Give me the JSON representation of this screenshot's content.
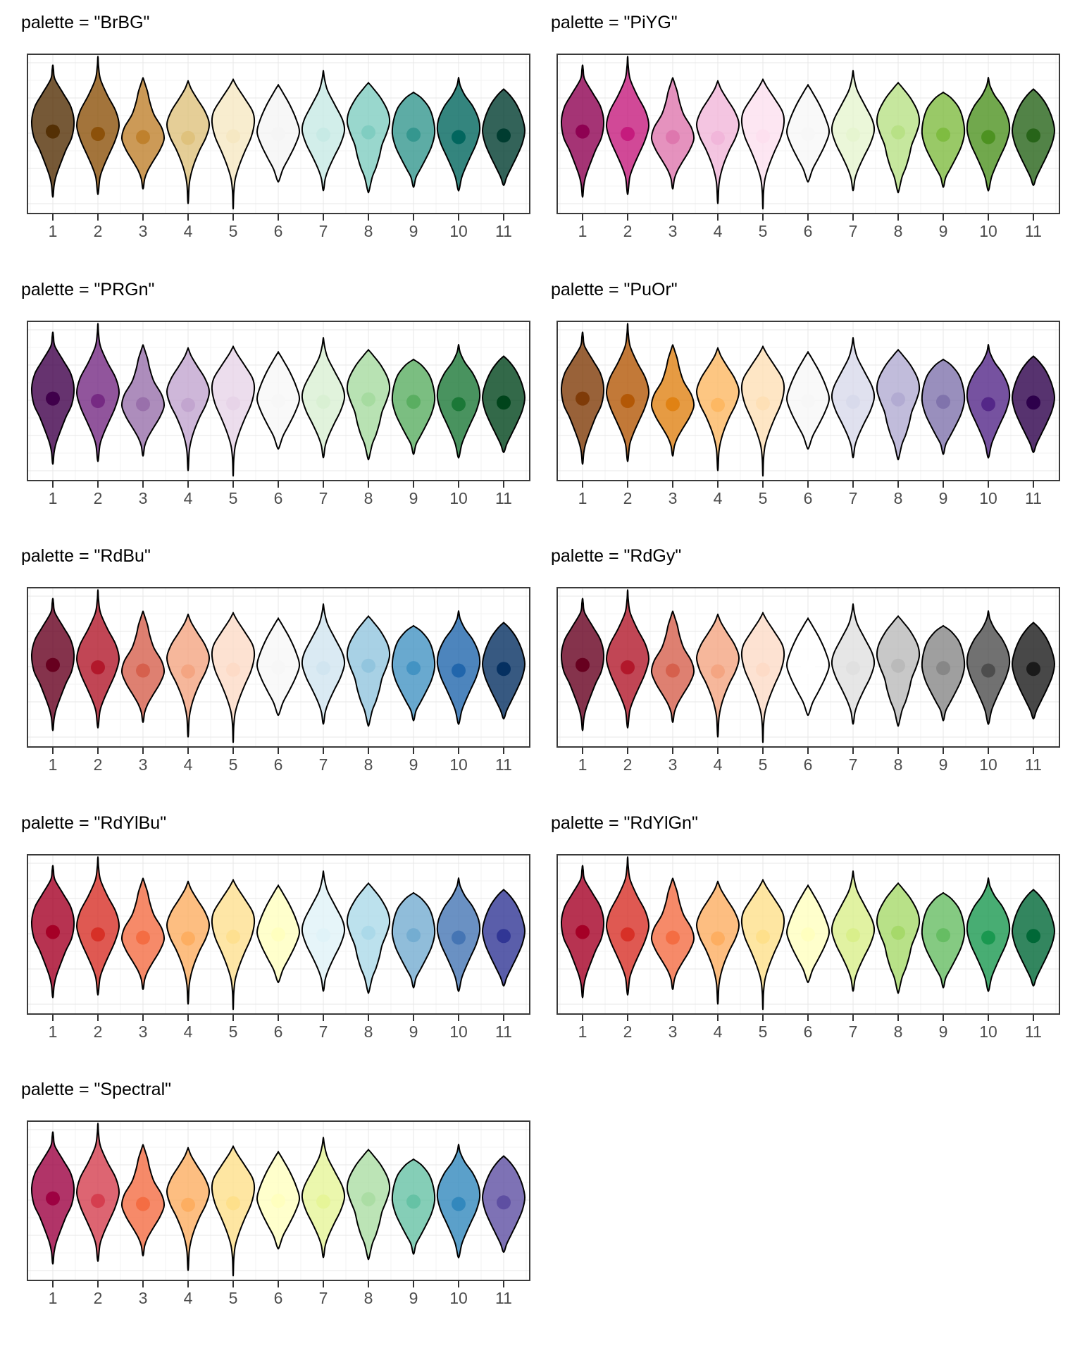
{
  "figure": {
    "background": "#ffffff"
  },
  "style": {
    "outline_color": "#000000",
    "violin_fill_opacity": 0.8,
    "panel_border_color": "#3a3a3a",
    "panel_background": "#ffffff",
    "grid_major_color": "#e7e7e7",
    "grid_minor_color": "#f3f3f3",
    "tick_mark_color": "#333333",
    "tick_label_color": "#4d4d4d",
    "title_color": "#000000"
  },
  "panels": [
    {
      "title": "palette = \"BrBG\"",
      "palette": "BrBG",
      "col": 0,
      "row": 0
    },
    {
      "title": "palette = \"PiYG\"",
      "palette": "PiYG",
      "col": 1,
      "row": 0
    },
    {
      "title": "palette = \"PRGn\"",
      "palette": "PRGn",
      "col": 0,
      "row": 1
    },
    {
      "title": "palette = \"PuOr\"",
      "palette": "PuOr",
      "col": 1,
      "row": 1
    },
    {
      "title": "palette = \"RdBu\"",
      "palette": "RdBu",
      "col": 0,
      "row": 2
    },
    {
      "title": "palette = \"RdGy\"",
      "palette": "RdGy",
      "col": 1,
      "row": 2
    },
    {
      "title": "palette = \"RdYlBu\"",
      "palette": "RdYlBu",
      "col": 0,
      "row": 3
    },
    {
      "title": "palette = \"RdYlGn\"",
      "palette": "RdYlGn",
      "col": 1,
      "row": 3
    },
    {
      "title": "palette = \"Spectral\"",
      "palette": "Spectral",
      "col": 0,
      "row": 4
    }
  ],
  "chart_data": {
    "type": "violin",
    "facet_variable": "palette",
    "facets": [
      "BrBG",
      "PiYG",
      "PRGn",
      "PuOr",
      "RdBu",
      "RdGy",
      "RdYlBu",
      "RdYlGn",
      "Spectral"
    ],
    "x_categories": [
      1,
      2,
      3,
      4,
      5,
      6,
      7,
      8,
      9,
      10,
      11
    ],
    "x_tick_labels": [
      "1",
      "2",
      "3",
      "4",
      "5",
      "6",
      "7",
      "8",
      "9",
      "10",
      "11"
    ],
    "grid": true,
    "legend": false,
    "y_axis_labels": false,
    "palettes": {
      "BrBG": [
        "#543005",
        "#8C510A",
        "#BF812D",
        "#DFC27D",
        "#F6E8C3",
        "#F5F5F5",
        "#C7EAE5",
        "#80CDC1",
        "#35978F",
        "#01665E",
        "#003C30"
      ],
      "PiYG": [
        "#8E0152",
        "#C51B7D",
        "#DE77AE",
        "#F1B6DA",
        "#FDE0EF",
        "#F7F7F7",
        "#E6F5D0",
        "#B8E186",
        "#7FBC41",
        "#4D9221",
        "#276419"
      ],
      "PRGn": [
        "#40004B",
        "#762A83",
        "#9970AB",
        "#C2A5CF",
        "#E7D4E8",
        "#F7F7F7",
        "#D9F0D3",
        "#A6DBA0",
        "#5AAE61",
        "#1B7837",
        "#00441B"
      ],
      "PuOr": [
        "#7F3B08",
        "#B35806",
        "#E08214",
        "#FDB863",
        "#FEE0B6",
        "#F7F7F7",
        "#D8DAEB",
        "#B2ABD2",
        "#8073AC",
        "#542788",
        "#2D004B"
      ],
      "RdBu": [
        "#67001F",
        "#B2182B",
        "#D6604D",
        "#F4A582",
        "#FDDBC7",
        "#F7F7F7",
        "#D1E5F0",
        "#92C5DE",
        "#4393C3",
        "#2166AC",
        "#053061"
      ],
      "RdGy": [
        "#67001F",
        "#B2182B",
        "#D6604D",
        "#F4A582",
        "#FDDBC7",
        "#FFFFFF",
        "#E0E0E0",
        "#BABABA",
        "#878787",
        "#4D4D4D",
        "#1A1A1A"
      ],
      "RdYlBu": [
        "#A50026",
        "#D73027",
        "#F46D43",
        "#FDAE61",
        "#FEE090",
        "#FFFFBF",
        "#E0F3F8",
        "#ABD9E9",
        "#74ADD1",
        "#4575B4",
        "#313695"
      ],
      "RdYlGn": [
        "#A50026",
        "#D73027",
        "#F46D43",
        "#FDAE61",
        "#FEE08B",
        "#FFFFBF",
        "#D9EF8B",
        "#A6D96A",
        "#66BD63",
        "#1A9850",
        "#006837"
      ],
      "Spectral": [
        "#9E0142",
        "#D53E4F",
        "#F46D43",
        "#FDAE61",
        "#FEE08B",
        "#FFFFBF",
        "#E6F598",
        "#ABDDA4",
        "#66C2A5",
        "#3288BD",
        "#5E4FA2"
      ]
    },
    "violins": [
      {
        "x": 1,
        "median": 0.485,
        "profile": [
          [
            0.075,
            0.01
          ],
          [
            0.1,
            0.03
          ],
          [
            0.16,
            0.1
          ],
          [
            0.25,
            0.5
          ],
          [
            0.33,
            0.85
          ],
          [
            0.42,
            1.0
          ],
          [
            0.52,
            0.9
          ],
          [
            0.6,
            0.62
          ],
          [
            0.68,
            0.38
          ],
          [
            0.76,
            0.16
          ],
          [
            0.82,
            0.06
          ],
          [
            0.885,
            0.015
          ]
        ]
      },
      {
        "x": 2,
        "median": 0.5,
        "profile": [
          [
            0.025,
            0.008
          ],
          [
            0.08,
            0.03
          ],
          [
            0.16,
            0.12
          ],
          [
            0.26,
            0.45
          ],
          [
            0.36,
            0.85
          ],
          [
            0.45,
            1.0
          ],
          [
            0.54,
            0.82
          ],
          [
            0.62,
            0.55
          ],
          [
            0.7,
            0.28
          ],
          [
            0.77,
            0.1
          ],
          [
            0.865,
            0.02
          ]
        ]
      },
      {
        "x": 3,
        "median": 0.52,
        "profile": [
          [
            0.155,
            0.012
          ],
          [
            0.19,
            0.1
          ],
          [
            0.24,
            0.22
          ],
          [
            0.3,
            0.32
          ],
          [
            0.38,
            0.52
          ],
          [
            0.46,
            0.88
          ],
          [
            0.53,
            1.0
          ],
          [
            0.6,
            0.8
          ],
          [
            0.67,
            0.48
          ],
          [
            0.73,
            0.22
          ],
          [
            0.78,
            0.08
          ],
          [
            0.835,
            0.02
          ]
        ]
      },
      {
        "x": 4,
        "median": 0.525,
        "profile": [
          [
            0.175,
            0.012
          ],
          [
            0.22,
            0.15
          ],
          [
            0.28,
            0.42
          ],
          [
            0.36,
            0.8
          ],
          [
            0.44,
            1.0
          ],
          [
            0.52,
            0.85
          ],
          [
            0.6,
            0.55
          ],
          [
            0.68,
            0.3
          ],
          [
            0.75,
            0.14
          ],
          [
            0.82,
            0.05
          ],
          [
            0.92,
            0.012
          ]
        ]
      },
      {
        "x": 5,
        "median": 0.515,
        "profile": [
          [
            0.165,
            0.01
          ],
          [
            0.21,
            0.2
          ],
          [
            0.28,
            0.55
          ],
          [
            0.36,
            0.92
          ],
          [
            0.43,
            1.0
          ],
          [
            0.52,
            0.85
          ],
          [
            0.61,
            0.55
          ],
          [
            0.7,
            0.28
          ],
          [
            0.78,
            0.1
          ],
          [
            0.86,
            0.03
          ],
          [
            0.955,
            0.008
          ]
        ]
      },
      {
        "x": 6,
        "median": 0.5,
        "profile": [
          [
            0.2,
            0.02
          ],
          [
            0.25,
            0.25
          ],
          [
            0.32,
            0.55
          ],
          [
            0.41,
            0.85
          ],
          [
            0.49,
            1.0
          ],
          [
            0.57,
            0.8
          ],
          [
            0.65,
            0.5
          ],
          [
            0.72,
            0.22
          ],
          [
            0.79,
            0.04
          ]
        ]
      },
      {
        "x": 7,
        "median": 0.505,
        "profile": [
          [
            0.112,
            0.008
          ],
          [
            0.16,
            0.06
          ],
          [
            0.23,
            0.2
          ],
          [
            0.32,
            0.55
          ],
          [
            0.41,
            0.9
          ],
          [
            0.48,
            1.0
          ],
          [
            0.56,
            0.82
          ],
          [
            0.64,
            0.52
          ],
          [
            0.72,
            0.24
          ],
          [
            0.78,
            0.09
          ],
          [
            0.845,
            0.02
          ]
        ]
      },
      {
        "x": 8,
        "median": 0.49,
        "profile": [
          [
            0.185,
            0.02
          ],
          [
            0.22,
            0.25
          ],
          [
            0.28,
            0.6
          ],
          [
            0.36,
            0.92
          ],
          [
            0.43,
            1.0
          ],
          [
            0.5,
            0.85
          ],
          [
            0.57,
            0.64
          ],
          [
            0.64,
            0.52
          ],
          [
            0.71,
            0.36
          ],
          [
            0.77,
            0.18
          ],
          [
            0.855,
            0.03
          ]
        ]
      },
      {
        "x": 9,
        "median": 0.505,
        "profile": [
          [
            0.245,
            0.04
          ],
          [
            0.28,
            0.4
          ],
          [
            0.34,
            0.75
          ],
          [
            0.42,
            0.95
          ],
          [
            0.5,
            1.0
          ],
          [
            0.58,
            0.85
          ],
          [
            0.65,
            0.6
          ],
          [
            0.72,
            0.32
          ],
          [
            0.77,
            0.12
          ],
          [
            0.825,
            0.025
          ]
        ]
      },
      {
        "x": 10,
        "median": 0.52,
        "profile": [
          [
            0.155,
            0.01
          ],
          [
            0.2,
            0.08
          ],
          [
            0.26,
            0.3
          ],
          [
            0.33,
            0.68
          ],
          [
            0.41,
            0.95
          ],
          [
            0.48,
            1.0
          ],
          [
            0.56,
            0.84
          ],
          [
            0.63,
            0.6
          ],
          [
            0.7,
            0.36
          ],
          [
            0.77,
            0.15
          ],
          [
            0.845,
            0.03
          ]
        ]
      },
      {
        "x": 11,
        "median": 0.51,
        "profile": [
          [
            0.225,
            0.03
          ],
          [
            0.26,
            0.3
          ],
          [
            0.32,
            0.62
          ],
          [
            0.4,
            0.88
          ],
          [
            0.48,
            1.0
          ],
          [
            0.56,
            0.88
          ],
          [
            0.64,
            0.62
          ],
          [
            0.71,
            0.36
          ],
          [
            0.77,
            0.14
          ],
          [
            0.815,
            0.03
          ]
        ]
      }
    ]
  }
}
